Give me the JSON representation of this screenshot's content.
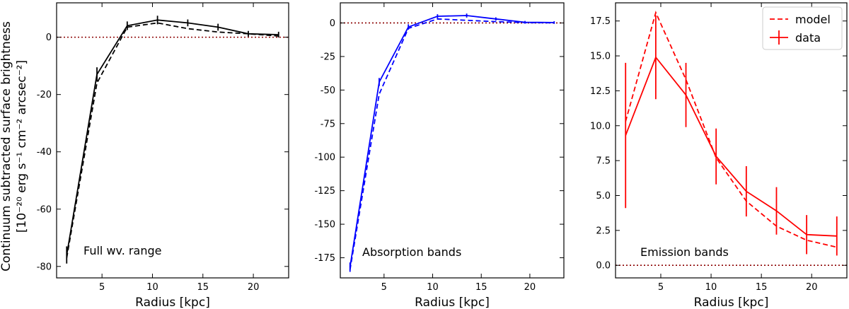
{
  "figure": {
    "ylabel_line1": "Continuum subtracted surface brightness",
    "ylabel_line2": "[10⁻²⁰ erg s⁻¹ cm⁻² arcsec⁻²]"
  },
  "chart_data": [
    {
      "type": "line",
      "annotation": "Full wv. range",
      "xlabel": "Radius [kpc]",
      "xlim": [
        0.5,
        23.5
      ],
      "ylim": [
        -84,
        12
      ],
      "xticks": [
        5,
        10,
        15,
        20
      ],
      "yticks": [
        -80,
        -60,
        -40,
        -20,
        0
      ],
      "x": [
        1.5,
        4.5,
        7.5,
        10.5,
        13.5,
        16.5,
        19.5,
        22.5
      ],
      "color": "#000000",
      "series": [
        {
          "style": "data",
          "values": [
            -76,
            -13,
            4,
            6,
            5,
            3.5,
            1.2,
            0.9
          ],
          "err": [
            3,
            2.5,
            1.5,
            1.5,
            1.2,
            1.2,
            1,
            1
          ]
        },
        {
          "style": "model",
          "values": [
            -77,
            -16,
            3.5,
            5,
            3,
            1.8,
            1.2,
            0.4
          ]
        }
      ],
      "zero_line": {
        "value": 0,
        "color": "#8b0000",
        "style": "dotted"
      }
    },
    {
      "type": "line",
      "annotation": "Absorption bands",
      "xlabel": "Radius [kpc]",
      "xlim": [
        0.5,
        23.5
      ],
      "ylim": [
        -190,
        15
      ],
      "xticks": [
        5,
        10,
        15,
        20
      ],
      "yticks": [
        -175,
        -150,
        -125,
        -100,
        -75,
        -50,
        -25,
        0
      ],
      "x": [
        1.5,
        4.5,
        7.5,
        10.5,
        13.5,
        16.5,
        19.5,
        22.5
      ],
      "color": "#0000ff",
      "series": [
        {
          "style": "data",
          "values": [
            -182,
            -44,
            -3,
            5,
            5.5,
            3,
            0.5,
            0.3
          ],
          "err": [
            3.5,
            3,
            2,
            1.5,
            1.5,
            1.2,
            1,
            1
          ]
        },
        {
          "style": "model",
          "values": [
            -184,
            -53,
            -4,
            3,
            2,
            1,
            0.3,
            0.1
          ]
        }
      ],
      "zero_line": {
        "value": 0,
        "color": "#8b0000",
        "style": "dotted"
      }
    },
    {
      "type": "line",
      "annotation": "Emission bands",
      "xlabel": "Radius [kpc]",
      "xlim": [
        0.5,
        23.5
      ],
      "ylim": [
        -0.9,
        18.8
      ],
      "xticks": [
        5,
        10,
        15,
        20
      ],
      "yticks": [
        0.0,
        2.5,
        5.0,
        7.5,
        10.0,
        12.5,
        15.0,
        17.5
      ],
      "ytick_labels": [
        "0.0",
        "2.5",
        "5.0",
        "7.5",
        "10.0",
        "12.5",
        "15.0",
        "17.5"
      ],
      "x": [
        1.5,
        4.5,
        7.5,
        10.5,
        13.5,
        16.5,
        19.5,
        22.5
      ],
      "color": "#ff0000",
      "legend": {
        "position": "top-right",
        "entries": [
          "model",
          "data"
        ]
      },
      "series": [
        {
          "name": "model",
          "style": "model",
          "values": [
            10.3,
            18.1,
            13.3,
            7.7,
            4.6,
            2.8,
            1.8,
            1.3
          ]
        },
        {
          "name": "data",
          "style": "data",
          "values": [
            9.3,
            14.9,
            12.2,
            7.8,
            5.3,
            3.9,
            2.2,
            2.1
          ],
          "err": [
            5.2,
            3,
            2.3,
            2,
            1.8,
            1.7,
            1.4,
            1.4
          ]
        }
      ],
      "zero_line": {
        "value": 0,
        "color": "#8b0000",
        "style": "dotted"
      }
    }
  ]
}
